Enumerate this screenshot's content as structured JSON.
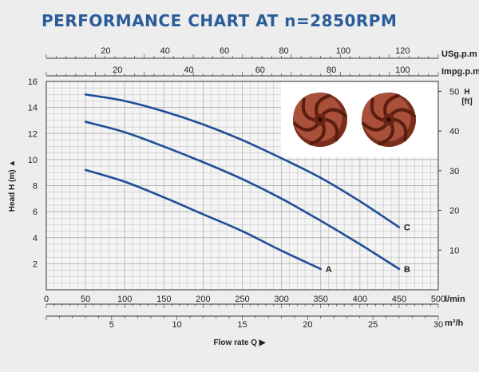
{
  "title": "PERFORMANCE CHART AT n=2850RPM",
  "chart_data": {
    "type": "line",
    "title": "PERFORMANCE CHART AT n=2850RPM",
    "xlabel": "Flow rate Q",
    "ylabel": "Head H (m)",
    "y2label": "H [ft]",
    "axes": {
      "head_m": {
        "range": [
          0,
          16
        ],
        "ticks": [
          "2",
          "4",
          "6",
          "8",
          "10",
          "12",
          "14",
          "16"
        ]
      },
      "head_ft": {
        "range": [
          0,
          52.5
        ],
        "ticks": [
          "10",
          "20",
          "30",
          "40",
          "50"
        ]
      },
      "flow_lmin": {
        "unit": "l/min",
        "range": [
          0,
          500
        ],
        "ticks": [
          "0",
          "50",
          "100",
          "150",
          "200",
          "250",
          "300",
          "350",
          "400",
          "450",
          "500"
        ]
      },
      "flow_m3h": {
        "unit": "m³/h",
        "range": [
          0,
          30
        ],
        "ticks": [
          "5",
          "10",
          "15",
          "20",
          "25",
          "30"
        ]
      },
      "flow_usgpm": {
        "unit": "USg.p.m",
        "range": [
          0,
          132
        ],
        "ticks": [
          "20",
          "40",
          "60",
          "80",
          "100",
          "120"
        ]
      },
      "flow_impgpm": {
        "unit": "Impg.p.m",
        "range": [
          0,
          110
        ],
        "ticks": [
          "20",
          "40",
          "60",
          "80",
          "100"
        ]
      }
    },
    "grid": true,
    "series": [
      {
        "name": "A",
        "x": [
          50,
          100,
          150,
          200,
          250,
          300,
          350
        ],
        "y": [
          9.2,
          8.3,
          7.1,
          5.8,
          4.5,
          3.0,
          1.6
        ]
      },
      {
        "name": "B",
        "x": [
          50,
          100,
          150,
          200,
          250,
          300,
          350,
          400,
          450
        ],
        "y": [
          12.9,
          12.1,
          11.0,
          9.8,
          8.5,
          7.0,
          5.3,
          3.5,
          1.6
        ]
      },
      {
        "name": "C",
        "x": [
          50,
          100,
          150,
          200,
          250,
          300,
          350,
          400,
          450
        ],
        "y": [
          15.0,
          14.5,
          13.7,
          12.7,
          11.5,
          10.1,
          8.6,
          6.8,
          4.8
        ]
      }
    ],
    "line_color": "#1f4e96",
    "inset": "two copper-coloured pump impellers photo, top-right"
  }
}
